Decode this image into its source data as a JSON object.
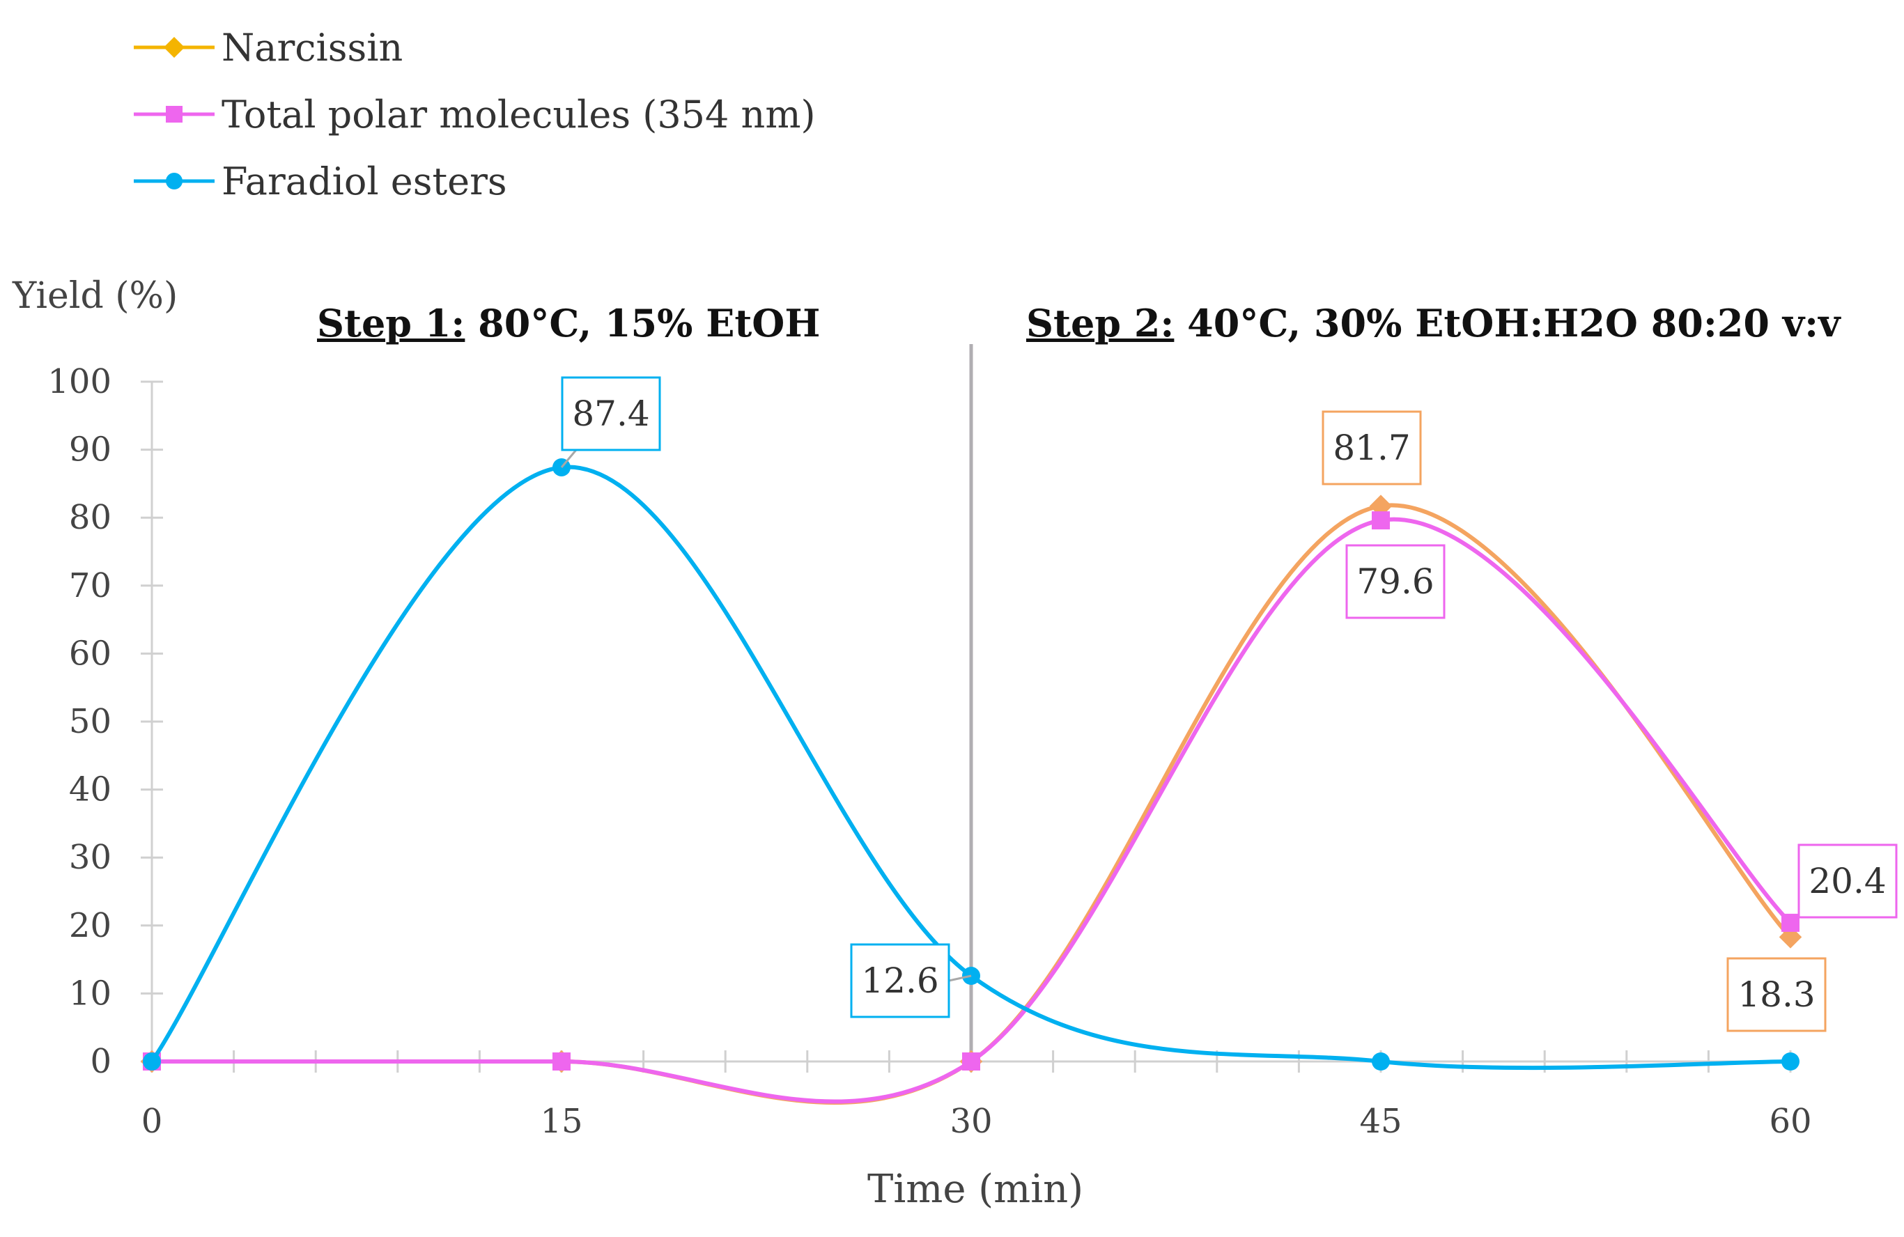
{
  "legend": [
    {
      "name": "Narcissin",
      "color": "#f4a460",
      "marker": "diamond",
      "swatch_color": "#f4b400"
    },
    {
      "name": "Total polar molecules (354 nm)",
      "color": "#ee66ee",
      "marker": "square"
    },
    {
      "name": "Faradiol esters",
      "color": "#00b0f0",
      "marker": "circle"
    }
  ],
  "axis": {
    "ylabel": "Yield  (%)",
    "xlabel": "Time (min)"
  },
  "steps": [
    {
      "label": "Step 1:",
      "detail": " 80°C, 15% EtOH"
    },
    {
      "label": "Step 2:",
      "detail": " 40°C, 30% EtOH:H2O 80:20 v:v"
    }
  ],
  "chart_data": {
    "type": "line",
    "title": "",
    "xlabel": "Time (min)",
    "ylabel": "Yield  (%)",
    "x": [
      0,
      15,
      30,
      45,
      60
    ],
    "xlim": [
      0,
      60
    ],
    "ylim": [
      0,
      100
    ],
    "xticks": [
      0,
      15,
      30,
      45,
      60
    ],
    "yticks": [
      0,
      10,
      20,
      30,
      40,
      50,
      60,
      70,
      80,
      90,
      100
    ],
    "divider_x": 30,
    "series": [
      {
        "name": "Narcissin",
        "values": [
          0,
          0,
          0,
          81.7,
          18.3
        ],
        "color": "#f4a460",
        "marker": "diamond"
      },
      {
        "name": "Total polar molecules (354 nm)",
        "values": [
          0,
          0,
          0,
          79.6,
          20.4
        ],
        "color": "#ee66ee",
        "marker": "square"
      },
      {
        "name": "Faradiol esters",
        "values": [
          0,
          87.4,
          12.6,
          0,
          0
        ],
        "color": "#00b0f0",
        "marker": "circle"
      }
    ],
    "data_labels": [
      {
        "series": "Faradiol esters",
        "x": 15,
        "y": 87.4,
        "text": "87.4",
        "color": "#00b0f0"
      },
      {
        "series": "Faradiol esters",
        "x": 30,
        "y": 12.6,
        "text": "12.6",
        "color": "#00b0f0"
      },
      {
        "series": "Narcissin",
        "x": 45,
        "y": 81.7,
        "text": "81.7",
        "color": "#f4a460"
      },
      {
        "series": "Total polar molecules (354 nm)",
        "x": 45,
        "y": 79.6,
        "text": "79.6",
        "color": "#ee66ee"
      },
      {
        "series": "Total polar molecules (354 nm)",
        "x": 60,
        "y": 20.4,
        "text": "20.4",
        "color": "#ee66ee"
      },
      {
        "series": "Narcissin",
        "x": 60,
        "y": 18.3,
        "text": "18.3",
        "color": "#f4a460"
      }
    ]
  }
}
